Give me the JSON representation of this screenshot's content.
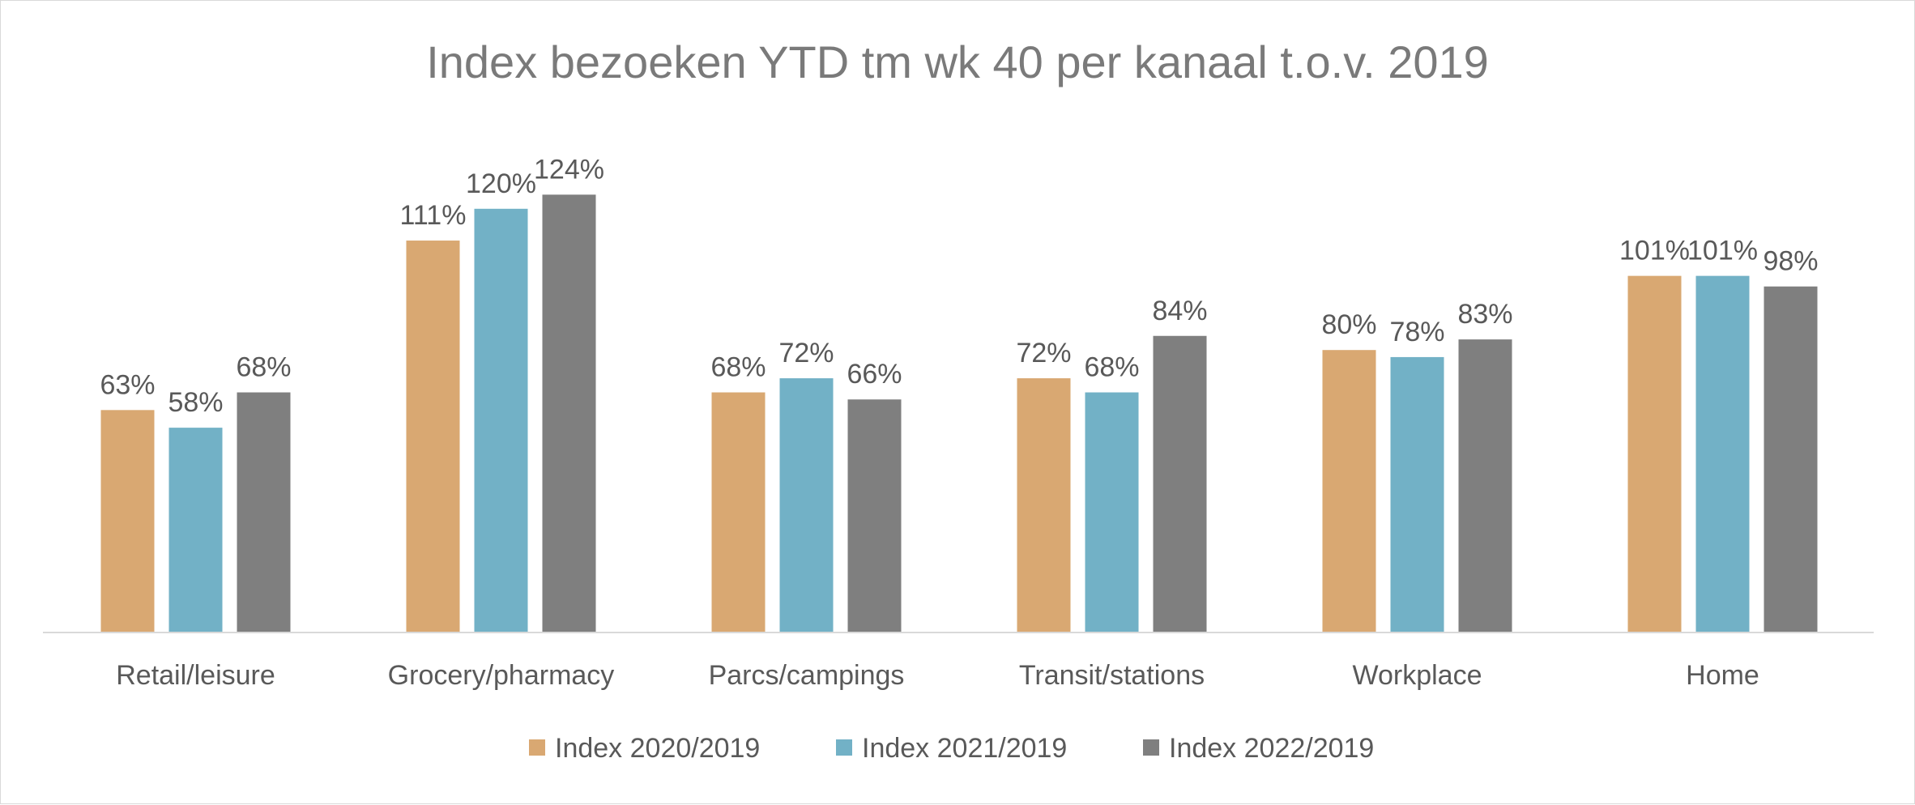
{
  "chart_data": {
    "type": "bar",
    "title": "Index bezoeken YTD tm wk 40 per kanaal t.o.v. 2019",
    "categories": [
      "Retail/leisure",
      "Grocery/pharmacy",
      "Parcs/campings",
      "Transit/stations",
      "Workplace",
      "Home"
    ],
    "series": [
      {
        "name": "Index 2020/2019",
        "color": "#D9A872",
        "values": [
          63,
          111,
          68,
          72,
          80,
          101
        ],
        "labels": [
          "63%",
          "111%",
          "68%",
          "72%",
          "80%",
          "101%"
        ]
      },
      {
        "name": "Index 2021/2019",
        "color": "#72B1C6",
        "values": [
          58,
          120,
          72,
          68,
          78,
          101
        ],
        "labels": [
          "58%",
          "120%",
          "72%",
          "68%",
          "78%",
          "101%"
        ]
      },
      {
        "name": "Index 2022/2019",
        "color": "#7F7F7F",
        "values": [
          68,
          124,
          66,
          84,
          83,
          98
        ],
        "labels": [
          "68%",
          "124%",
          "66%",
          "84%",
          "83%",
          "98%"
        ]
      }
    ],
    "ylim": [
      0,
      130
    ],
    "grid": false,
    "legend_position": "bottom-center",
    "xlabel": "",
    "ylabel": ""
  }
}
